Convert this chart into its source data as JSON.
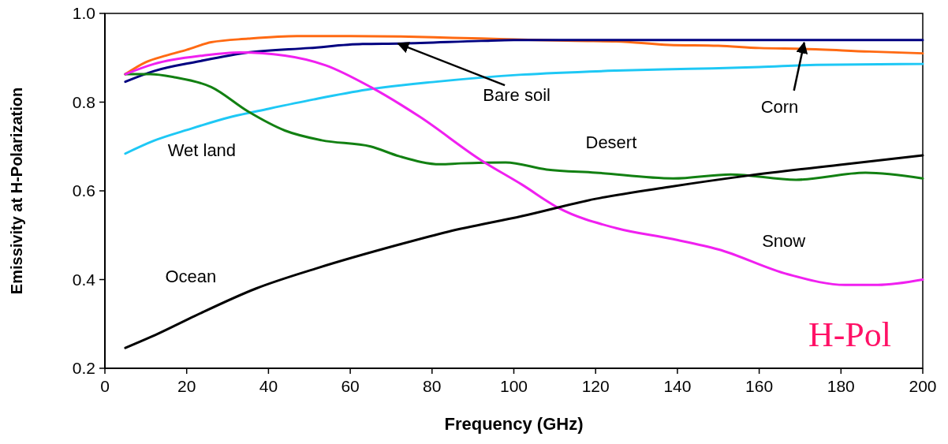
{
  "chart_data": {
    "type": "line",
    "xlabel": "Frequency (GHz)",
    "ylabel": "Emissivity at H-Polarization",
    "xlim": [
      0,
      200
    ],
    "ylim": [
      0.2,
      1.0
    ],
    "xticks": [
      0,
      20,
      40,
      60,
      80,
      100,
      120,
      140,
      160,
      180,
      200
    ],
    "yticks": [
      0.2,
      0.4,
      0.6,
      0.8,
      {
        "value": 1,
        "label": "1.0"
      }
    ],
    "grid": false,
    "marker": "none",
    "line_style": "solid",
    "annotations": [
      "H-Pol"
    ],
    "series": [
      {
        "name": "Corn",
        "color": "#ff6a13",
        "x": [
          5,
          10,
          15,
          20,
          26,
          35,
          47,
          60,
          72,
          85,
          98,
          115,
          125,
          138,
          150,
          160,
          171,
          187,
          200
        ],
        "values": [
          0.863,
          0.89,
          0.905,
          0.918,
          0.935,
          0.943,
          0.949,
          0.949,
          0.948,
          0.945,
          0.942,
          0.938,
          0.937,
          0.929,
          0.927,
          0.922,
          0.92,
          0.914,
          0.91
        ]
      },
      {
        "name": "Bare soil",
        "color": "#000080",
        "x": [
          5,
          12,
          23,
          35,
          50,
          63,
          72,
          92,
          100,
          120,
          140,
          160,
          180,
          200
        ],
        "values": [
          0.846,
          0.87,
          0.892,
          0.912,
          0.922,
          0.931,
          0.932,
          0.938,
          0.94,
          0.94,
          0.94,
          0.94,
          0.94,
          0.94
        ]
      },
      {
        "name": "Wet land",
        "color": "#1ec8f5",
        "x": [
          5,
          12,
          20,
          31,
          40,
          51,
          64,
          81,
          102,
          125,
          143,
          160,
          174,
          200
        ],
        "values": [
          0.684,
          0.713,
          0.737,
          0.767,
          0.785,
          0.806,
          0.828,
          0.846,
          0.862,
          0.871,
          0.875,
          0.879,
          0.884,
          0.886
        ]
      },
      {
        "name": "Desert",
        "color": "#128012",
        "x": [
          5,
          11,
          17,
          26,
          35,
          44,
          53,
          65,
          72,
          82,
          87,
          98,
          108,
          120,
          139,
          153,
          169,
          186,
          200
        ],
        "values": [
          0.863,
          0.863,
          0.856,
          0.834,
          0.779,
          0.736,
          0.714,
          0.7,
          0.678,
          0.66,
          0.662,
          0.664,
          0.648,
          0.641,
          0.628,
          0.637,
          0.625,
          0.641,
          0.628
        ]
      },
      {
        "name": "Snow",
        "color": "#f020f0",
        "x": [
          5,
          12,
          24,
          33,
          44,
          54,
          65,
          77,
          92,
          102,
          111,
          125,
          139,
          150,
          167,
          181,
          189,
          200
        ],
        "values": [
          0.863,
          0.886,
          0.905,
          0.912,
          0.905,
          0.883,
          0.834,
          0.767,
          0.669,
          0.614,
          0.561,
          0.516,
          0.491,
          0.468,
          0.412,
          0.388,
          0.388,
          0.4
        ]
      },
      {
        "name": "Ocean",
        "color": "#000000",
        "x": [
          5,
          13,
          22,
          37,
          52,
          72,
          84,
          102,
          120,
          138,
          157,
          181,
          200
        ],
        "values": [
          0.246,
          0.278,
          0.318,
          0.38,
          0.426,
          0.479,
          0.508,
          0.543,
          0.582,
          0.609,
          0.634,
          0.66,
          0.68
        ]
      }
    ]
  }
}
